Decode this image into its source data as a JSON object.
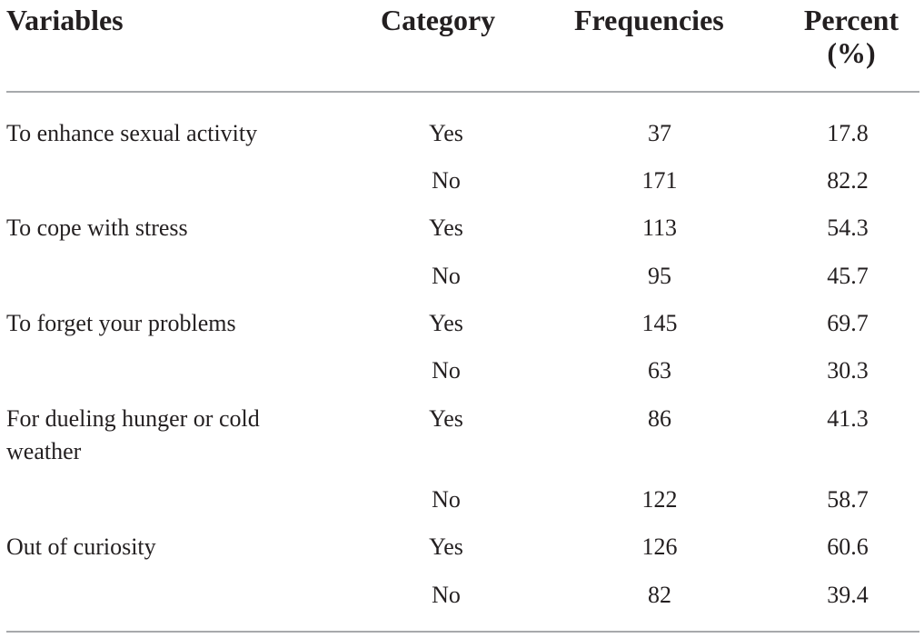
{
  "table": {
    "headers": {
      "variables": "Variables",
      "category": "Category",
      "frequencies": "Frequencies",
      "percent_line1": "Percent",
      "percent_line2": "(%)"
    },
    "rows": [
      {
        "variable": "To enhance sexual activity",
        "category": "Yes",
        "frequency": "37",
        "percent": "17.8"
      },
      {
        "variable": "",
        "category": "No",
        "frequency": "171",
        "percent": "82.2"
      },
      {
        "variable": "To cope with stress",
        "category": "Yes",
        "frequency": "113",
        "percent": "54.3"
      },
      {
        "variable": "",
        "category": "No",
        "frequency": "95",
        "percent": "45.7"
      },
      {
        "variable": "To forget your problems",
        "category": "Yes",
        "frequency": "145",
        "percent": "69.7"
      },
      {
        "variable": "",
        "category": "No",
        "frequency": "63",
        "percent": "30.3"
      },
      {
        "variable": "For dueling hunger or cold weather",
        "category": "Yes",
        "frequency": "86",
        "percent": "41.3"
      },
      {
        "variable": "",
        "category": "No",
        "frequency": "122",
        "percent": "58.7"
      },
      {
        "variable": "Out of curiosity",
        "category": "Yes",
        "frequency": "126",
        "percent": "60.6"
      },
      {
        "variable": "",
        "category": "No",
        "frequency": "82",
        "percent": "39.4"
      }
    ]
  }
}
